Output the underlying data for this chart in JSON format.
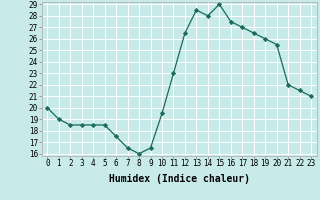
{
  "xlabel": "Humidex (Indice chaleur)",
  "ylabel": "",
  "x": [
    0,
    1,
    2,
    3,
    4,
    5,
    6,
    7,
    8,
    9,
    10,
    11,
    12,
    13,
    14,
    15,
    16,
    17,
    18,
    19,
    20,
    21,
    22,
    23
  ],
  "y": [
    20.0,
    19.0,
    18.5,
    18.5,
    18.5,
    18.5,
    17.5,
    16.5,
    16.0,
    16.5,
    19.5,
    23.0,
    26.5,
    28.5,
    28.0,
    29.0,
    27.5,
    27.0,
    26.5,
    26.0,
    25.5,
    22.0,
    21.5,
    21.0
  ],
  "line_color": "#1a6b5a",
  "marker": "D",
  "marker_size": 2.2,
  "bg_color": "#c8eae8",
  "grid_color": "#ffffff",
  "grid_minor_color": "#daf0ee",
  "ylim": [
    16,
    29
  ],
  "yticks": [
    16,
    17,
    18,
    19,
    20,
    21,
    22,
    23,
    24,
    25,
    26,
    27,
    28,
    29
  ],
  "xticks": [
    0,
    1,
    2,
    3,
    4,
    5,
    6,
    7,
    8,
    9,
    10,
    11,
    12,
    13,
    14,
    15,
    16,
    17,
    18,
    19,
    20,
    21,
    22,
    23
  ],
  "xlabel_fontsize": 7.0,
  "tick_fontsize": 5.5
}
